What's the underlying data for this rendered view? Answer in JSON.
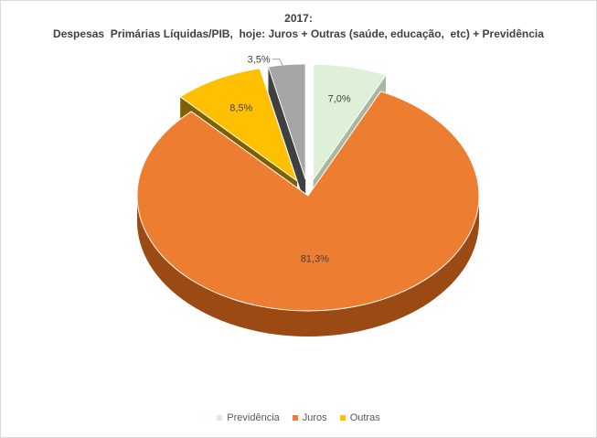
{
  "chart_data": {
    "type": "pie",
    "title": "2017:",
    "subtitle": "Despesas  Primárias Líquidas/PIB,  hoje: Juros + Outras (saúde, educação,  etc) + Previdência",
    "slices": [
      {
        "label": "Previdência",
        "value": 7.0,
        "display": "7,0%",
        "color": "#dff0d8",
        "side_color": "#a9b7a0"
      },
      {
        "label": "Juros",
        "value": 81.3,
        "display": "81,3%",
        "color": "#ed7d31",
        "side_color": "#9c4a13"
      },
      {
        "label": "Outras",
        "value": 8.5,
        "display": "8,5%",
        "color": "#ffc000",
        "side_color": "#7f6000"
      },
      {
        "label": "",
        "value": 3.5,
        "display": "3,5%",
        "color": "#a6a6a6",
        "side_color": "#404040"
      }
    ],
    "legend": {
      "placement": "bottom",
      "entries": [
        {
          "label": "Previdência",
          "color": "#dff0d8"
        },
        {
          "label": "Juros",
          "color": "#ed7d31"
        },
        {
          "label": "Outras",
          "color": "#ffc000"
        }
      ]
    }
  }
}
